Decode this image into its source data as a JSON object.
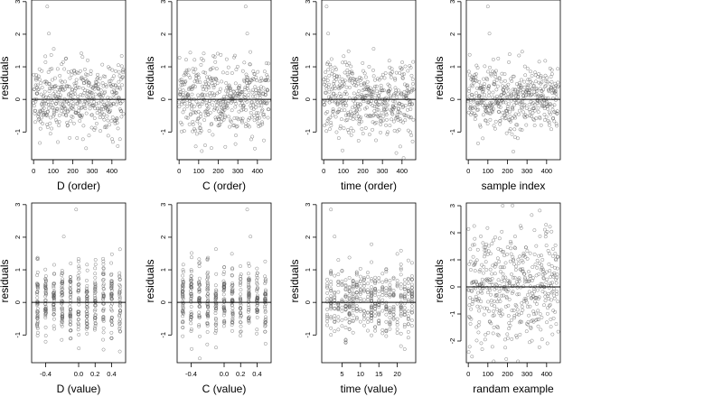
{
  "chart_data": [
    {
      "type": "scatter",
      "xlabel": "D (order)",
      "ylabel": "residuals",
      "xlim": [
        -10,
        470
      ],
      "ylim": [
        -1.85,
        3.05
      ],
      "xticks": [
        0,
        100,
        200,
        300,
        400
      ],
      "yticks": [
        -1,
        0,
        1,
        2,
        3
      ],
      "hline": 0,
      "n_points": 460,
      "x": "0..459 (order index)",
      "y": "residuals, roughly centred on 0 (sd ~0.6), outliers near 2.9 at x~70 and 2.0 at x~60",
      "seed": 11
    },
    {
      "type": "scatter",
      "xlabel": "C (order)",
      "ylabel": "residuals",
      "xlim": [
        -10,
        470
      ],
      "ylim": [
        -1.85,
        3.05
      ],
      "xticks": [
        0,
        100,
        200,
        300,
        400
      ],
      "yticks": [
        -1,
        0,
        1,
        2,
        3
      ],
      "hline": 0,
      "n_points": 460,
      "y": "residuals, roughly centred on 0 (sd ~0.6), outliers near 2.85 at x~340 and 2.0 at x~350",
      "seed": 22
    },
    {
      "type": "scatter",
      "xlabel": "time (order)",
      "ylabel": "residuals",
      "xlim": [
        -10,
        470
      ],
      "ylim": [
        -1.85,
        3.05
      ],
      "xticks": [
        0,
        100,
        200,
        300,
        400
      ],
      "yticks": [
        -1,
        0,
        1,
        2,
        3
      ],
      "hline": 0,
      "n_points": 460,
      "y": "residuals, roughly centred on 0 (sd ~0.6), outliers near 2.85 at x~15 and 2.0 at x~20",
      "seed": 33
    },
    {
      "type": "scatter",
      "xlabel": "sample index",
      "ylabel": "residuals",
      "xlim": [
        -10,
        470
      ],
      "ylim": [
        -1.85,
        3.05
      ],
      "xticks": [
        0,
        100,
        200,
        300,
        400
      ],
      "yticks": [
        -1,
        0,
        1,
        2,
        3
      ],
      "hline": 0,
      "n_points": 460,
      "y": "residuals, roughly centred on 0 (sd ~0.6), outliers near 2.85 at x~100 and 2.0 at x~105",
      "seed": 44
    },
    {
      "type": "scatter",
      "xlabel": "D (value)",
      "ylabel": "residuals",
      "xlim": [
        -0.57,
        0.57
      ],
      "ylim": [
        -1.85,
        3.05
      ],
      "xticks": [
        -0.4,
        0.0,
        0.2,
        0.4
      ],
      "xticklabels": [
        "-0.4",
        "0.0",
        "0.2",
        "0.4"
      ],
      "yticks": [
        -1,
        0,
        1,
        2,
        3
      ],
      "hline": 0,
      "n_points": 460,
      "y": "residuals at discrete D levels; outliers near 2.85 and 2.0",
      "seed": 55
    },
    {
      "type": "scatter",
      "xlabel": "C (value)",
      "ylabel": "residuals",
      "xlim": [
        -0.57,
        0.57
      ],
      "ylim": [
        -1.85,
        3.05
      ],
      "xticks": [
        -0.4,
        0.0,
        0.2,
        0.4
      ],
      "xticklabels": [
        "-0.4",
        "0.0",
        "0.2",
        "0.4"
      ],
      "yticks": [
        -1,
        0,
        1,
        2,
        3
      ],
      "hline": 0,
      "n_points": 460,
      "y": "residuals at discrete C levels; outliers near 2.85 and 2.0",
      "seed": 66
    },
    {
      "type": "scatter",
      "xlabel": "time (value)",
      "ylabel": "residuals",
      "xlim": [
        -0.5,
        25
      ],
      "ylim": [
        -1.85,
        3.05
      ],
      "xticks": [
        5,
        10,
        15,
        20
      ],
      "yticks": [
        -1,
        0,
        1,
        2,
        3
      ],
      "hline": 0,
      "n_points": 460,
      "y": "residuals at integer time levels 1-24; outliers near 2.85 and 2.0",
      "seed": 77
    },
    {
      "type": "scatter",
      "xlabel": "randam example",
      "ylabel": "residuals",
      "xlim": [
        -10,
        470
      ],
      "ylim": [
        -2.8,
        3.1
      ],
      "xticks": [
        0,
        100,
        200,
        300,
        400
      ],
      "yticks": [
        -2,
        -1,
        0,
        1,
        2,
        3
      ],
      "hline": 0,
      "n_points": 460,
      "y": "random normal values (sd ~1.1) centred on 0",
      "seed": 88
    }
  ]
}
